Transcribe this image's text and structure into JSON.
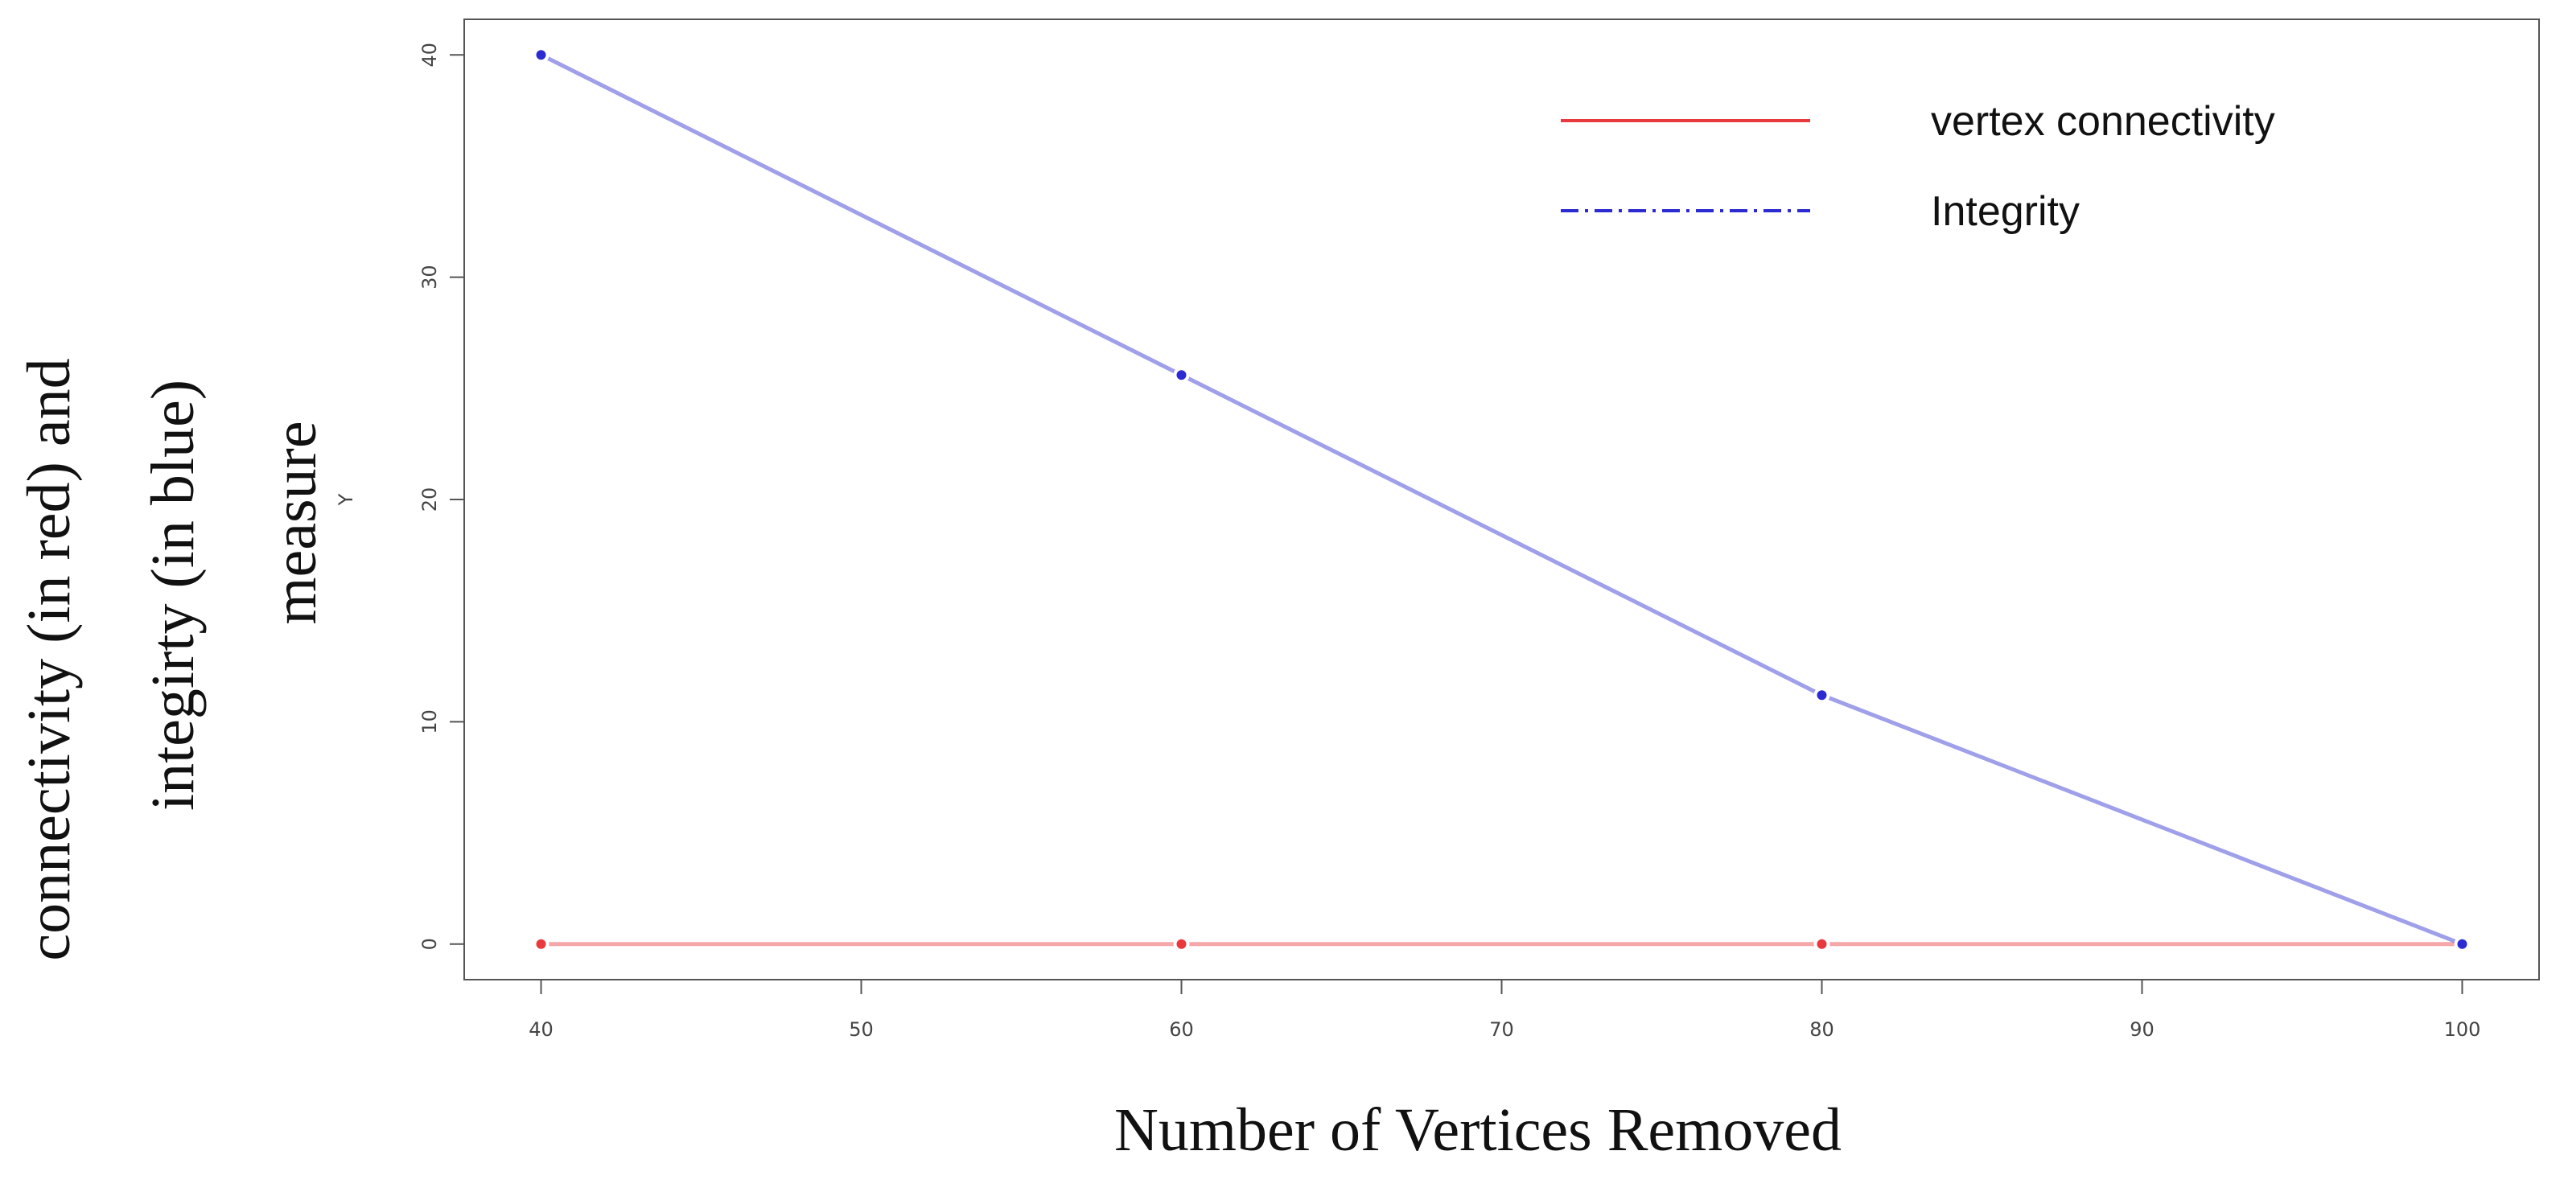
{
  "chart_data": {
    "type": "line",
    "xlabel": "Number of Vertices Removed",
    "ylabel": [
      "connectivity (in red) and",
      "integirty (in blue)",
      "measure"
    ],
    "inner_ylabel": "Y",
    "x": [
      40,
      60,
      80,
      100
    ],
    "series": [
      {
        "name": "vertex connectivity",
        "color": "#e8393e",
        "dash": "solid",
        "values": [
          0,
          0,
          0,
          0
        ]
      },
      {
        "name": "Integrity",
        "color": "#2b2bd1",
        "dash": "dashdot",
        "values": [
          40,
          25.6,
          11.2,
          0
        ]
      }
    ],
    "xlim": [
      37.6,
      102.4
    ],
    "ylim": [
      -1.6,
      41.6
    ],
    "xticks": [
      40,
      50,
      60,
      70,
      80,
      90,
      100
    ],
    "yticks": [
      0,
      10,
      20,
      30,
      40
    ],
    "legend": "upper right",
    "grid": false
  }
}
